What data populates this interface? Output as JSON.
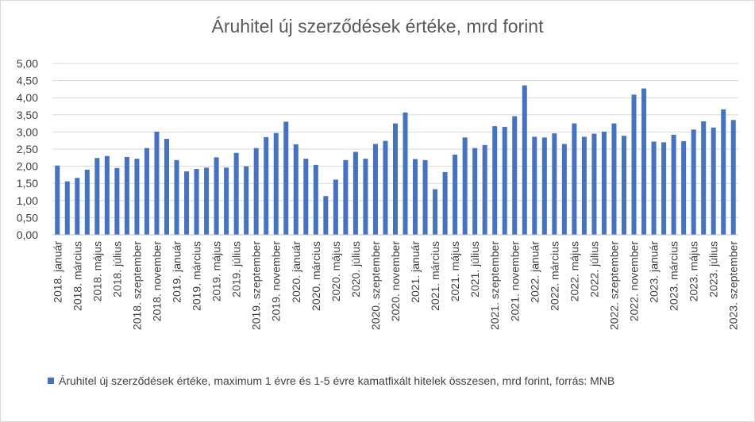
{
  "chart_data": {
    "type": "bar",
    "title": "Áruhitel új szerződések értéke, mrd forint",
    "color": "#4472c4",
    "ylim": [
      0,
      5
    ],
    "yticks": [
      "0,00",
      "0,50",
      "1,00",
      "1,50",
      "2,00",
      "2,50",
      "3,00",
      "3,50",
      "4,00",
      "4,50",
      "5,00"
    ],
    "grid": true,
    "legend_position": "bottom",
    "categories": [
      "2018. január",
      "2018. február",
      "2018. március",
      "2018. április",
      "2018. május",
      "2018. június",
      "2018. július",
      "2018. augusztus",
      "2018. szeptember",
      "2018. október",
      "2018. november",
      "2018. december",
      "2019. január",
      "2019. február",
      "2019. március",
      "2019. április",
      "2019. május",
      "2019. június",
      "2019. július",
      "2019. augusztus",
      "2019. szeptember",
      "2019. október",
      "2019. november",
      "2019. december",
      "2020. január",
      "2020. február",
      "2020. március",
      "2020. április",
      "2020. május",
      "2020. június",
      "2020. július",
      "2020. augusztus",
      "2020. szeptember",
      "2020. október",
      "2020. november",
      "2020. december",
      "2021. január",
      "2021. február",
      "2021. március",
      "2021. április",
      "2021. május",
      "2021. június",
      "2021. július",
      "2021. augusztus",
      "2021. szeptember",
      "2021. október",
      "2021. november",
      "2021. december",
      "2022. január",
      "2022. február",
      "2022. március",
      "2022. április",
      "2022. május",
      "2022. június",
      "2022. július",
      "2022. augusztus",
      "2022. szeptember",
      "2022. október",
      "2022. november",
      "2022. december",
      "2023. január",
      "2023. február",
      "2023. március",
      "2023. április",
      "2023. május",
      "2023. június",
      "2023. július",
      "2023. augusztus",
      "2023. szeptember"
    ],
    "visible_tick_labels": [
      "2018. január",
      "2018. március",
      "2018. május",
      "2018. július",
      "2018. szeptember",
      "2018. november",
      "2019. január",
      "2019. március",
      "2019. május",
      "2019. július",
      "2019. szeptember",
      "2019. november",
      "2020. január",
      "2020. március",
      "2020. május",
      "2020. július",
      "2020. szeptember",
      "2020. november",
      "2021. január",
      "2021. március",
      "2021. május",
      "2021. július",
      "2021. szeptember",
      "2021. november",
      "2022. január",
      "2022. március",
      "2022. május",
      "2022. július",
      "2022. szeptember",
      "2022. november",
      "2023. január",
      "2023. március",
      "2023. május",
      "2023. július",
      "2023. szeptember"
    ],
    "series": [
      {
        "name": "Áruhitel új szerződések értéke, maximum 1 évre és 1-5 évre kamatfixált hitelek összesen, mrd forint, forrás: MNB",
        "values": [
          2.02,
          1.56,
          1.66,
          1.9,
          2.24,
          2.3,
          1.95,
          2.27,
          2.22,
          2.53,
          3.01,
          2.8,
          2.18,
          1.85,
          1.92,
          1.96,
          2.26,
          1.96,
          2.39,
          2.0,
          2.53,
          2.85,
          2.97,
          3.3,
          2.64,
          2.22,
          2.04,
          1.13,
          1.61,
          2.18,
          2.42,
          2.22,
          2.65,
          2.74,
          3.25,
          3.57,
          2.21,
          2.18,
          1.33,
          1.83,
          2.34,
          2.84,
          2.53,
          2.62,
          3.17,
          3.15,
          3.46,
          4.36,
          2.86,
          2.84,
          2.96,
          2.65,
          3.25,
          2.86,
          2.95,
          3.01,
          3.25,
          2.89,
          4.09,
          4.27,
          2.72,
          2.7,
          2.92,
          2.73,
          3.07,
          3.31,
          3.13,
          3.66,
          3.35
        ]
      }
    ]
  }
}
